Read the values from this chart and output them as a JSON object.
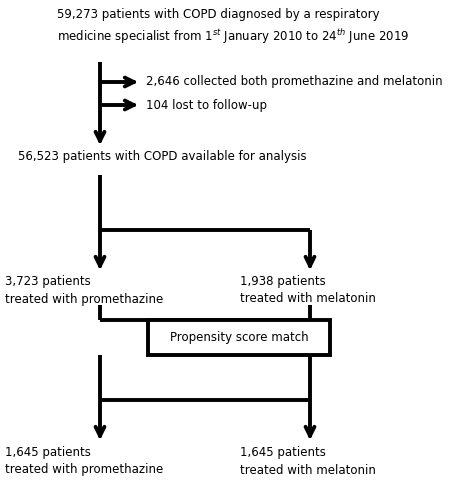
{
  "bg_color": "#ffffff",
  "excl1_text": "2,646 collected both promethazine and melatonin",
  "excl2_text": "104 lost to follow-up",
  "mid_text": "56,523 patients with COPD available for analysis",
  "left_text1": "3,723 patients\ntreated with promethazine",
  "right_text1": "1,938 patients\ntreated with melatonin",
  "box_text": "Propensity score match",
  "left_text2": "1,645 patients\ntreated with promethazine",
  "right_text2": "1,645 patients\ntreated with melatonin",
  "arrow_color": "#000000",
  "text_color": "#000000",
  "lw": 2.8,
  "fs": 8.5
}
